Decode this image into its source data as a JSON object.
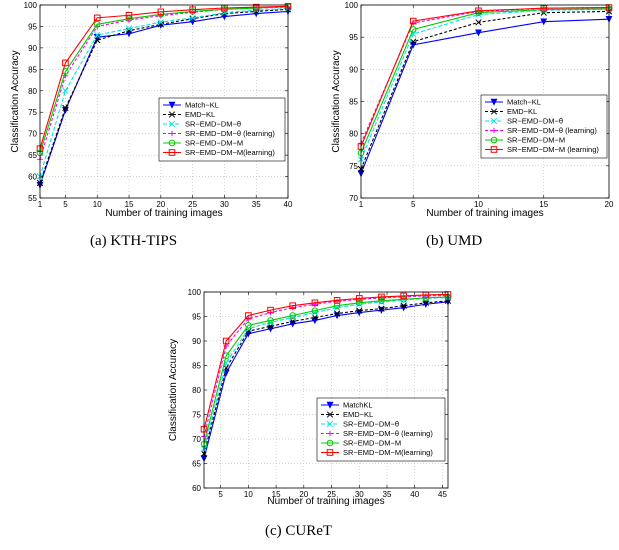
{
  "captions": [
    "(a)  KTH-TIPS",
    "(b)  UMD",
    "(c)  CUReT"
  ],
  "chart_data": [
    {
      "type": "line",
      "xlabel": "Number   of   training   images",
      "ylabel": "Classification   Accuracy",
      "xlim": [
        1,
        40
      ],
      "ylim": [
        55,
        100
      ],
      "xticks": [
        1,
        5,
        10,
        15,
        20,
        25,
        30,
        35,
        40
      ],
      "yticks": [
        55,
        60,
        65,
        70,
        75,
        80,
        85,
        90,
        95,
        100
      ],
      "grid": true,
      "legend_position": "bottom-right",
      "x": [
        1,
        5,
        10,
        15,
        20,
        25,
        30,
        35,
        40
      ],
      "series": [
        {
          "name": "Match−KL",
          "color": "#0000ff",
          "dash": "",
          "marker": "tri-down",
          "values": [
            58.0,
            75.5,
            92.5,
            93.3,
            95.3,
            96.1,
            97.3,
            98.0,
            98.5
          ]
        },
        {
          "name": "EMD−KL",
          "color": "#000000",
          "dash": "3,2",
          "marker": "x",
          "values": [
            58.5,
            76.0,
            91.8,
            94.0,
            95.5,
            96.8,
            98.0,
            98.5,
            99.0
          ]
        },
        {
          "name": "SR−EMD−DM−θ",
          "color": "#00e5e5",
          "dash": "4,2",
          "marker": "x",
          "values": [
            60.0,
            80.0,
            93.0,
            94.5,
            96.0,
            97.0,
            98.2,
            98.8,
            99.2
          ]
        },
        {
          "name": "SR−EMD−DM−θ (learning)",
          "color": "#ff00ff",
          "dash": "3,2",
          "marker": "plus",
          "values": [
            64.0,
            83.5,
            95.0,
            96.5,
            97.5,
            98.3,
            99.0,
            99.3,
            99.5
          ]
        },
        {
          "name": "SR−EMD−DM−M",
          "color": "#00cc00",
          "dash": "",
          "marker": "circle",
          "values": [
            65.5,
            84.5,
            95.5,
            96.8,
            97.8,
            98.5,
            99.0,
            99.3,
            99.6
          ]
        },
        {
          "name": "SR−EMD−DM−M(learning)",
          "color": "#ff0000",
          "dash": "",
          "marker": "square",
          "values": [
            66.5,
            86.5,
            97.0,
            97.6,
            98.4,
            98.9,
            99.3,
            99.5,
            99.7
          ]
        }
      ]
    },
    {
      "type": "line",
      "xlabel": "Number   of   training   images",
      "ylabel": "Classification   Accuracy",
      "xlim": [
        1,
        20
      ],
      "ylim": [
        70,
        100
      ],
      "xticks": [
        1,
        5,
        10,
        15,
        20
      ],
      "yticks": [
        70,
        75,
        80,
        85,
        90,
        95,
        100
      ],
      "grid": true,
      "legend_position": "top-right",
      "x": [
        1,
        5,
        10,
        15,
        20
      ],
      "series": [
        {
          "name": "Match−KL",
          "color": "#0000ff",
          "dash": "",
          "marker": "tri-down",
          "values": [
            73.8,
            93.8,
            95.7,
            97.4,
            97.8
          ]
        },
        {
          "name": "EMD−KL",
          "color": "#000000",
          "dash": "3,2",
          "marker": "x",
          "values": [
            74.5,
            94.3,
            97.3,
            98.8,
            99.0
          ]
        },
        {
          "name": "SR−EMD−DM−θ",
          "color": "#00e5e5",
          "dash": "4,2",
          "marker": "x",
          "values": [
            76.0,
            95.5,
            98.5,
            99.2,
            99.3
          ]
        },
        {
          "name": "SR−EMD−DM−θ (learning)",
          "color": "#ff00ff",
          "dash": "3,2",
          "marker": "plus",
          "values": [
            78.5,
            97.2,
            99.0,
            99.5,
            99.6
          ]
        },
        {
          "name": "SR−EMD−DM−M",
          "color": "#00cc00",
          "dash": "",
          "marker": "circle",
          "values": [
            77.0,
            96.2,
            98.8,
            99.3,
            99.4
          ]
        },
        {
          "name": "SR−EMD−DM−M (learning)",
          "color": "#ff0000",
          "dash": "",
          "marker": "square",
          "values": [
            78.0,
            97.5,
            99.1,
            99.5,
            99.6
          ]
        }
      ]
    },
    {
      "type": "line",
      "xlabel": "Number   of   training   images",
      "ylabel": "Classification   Accuracy",
      "xlim": [
        2,
        46
      ],
      "ylim": [
        60,
        100
      ],
      "xticks": [
        5,
        10,
        15,
        20,
        25,
        30,
        35,
        40,
        45
      ],
      "yticks": [
        60,
        65,
        70,
        75,
        80,
        85,
        90,
        95,
        100
      ],
      "grid": true,
      "legend_position": "bottom-right",
      "x": [
        2,
        6,
        10,
        14,
        18,
        22,
        26,
        30,
        34,
        38,
        42,
        46
      ],
      "series": [
        {
          "name": "MatchKL",
          "color": "#0000ff",
          "dash": "",
          "marker": "tri-down",
          "values": [
            66.0,
            83.5,
            91.5,
            92.5,
            93.5,
            94.2,
            95.2,
            95.8,
            96.3,
            96.8,
            97.5,
            98.0
          ]
        },
        {
          "name": "EMD−KL",
          "color": "#000000",
          "dash": "3,2",
          "marker": "x",
          "values": [
            67.0,
            84.5,
            92.0,
            93.0,
            94.0,
            94.8,
            95.6,
            96.2,
            96.6,
            97.2,
            97.8,
            98.2
          ]
        },
        {
          "name": "SR−EMD−DM−θ",
          "color": "#00e5e5",
          "dash": "4,2",
          "marker": "x",
          "values": [
            68.0,
            85.5,
            92.5,
            93.8,
            94.8,
            95.8,
            96.8,
            97.5,
            98.0,
            98.4,
            98.7,
            98.9
          ]
        },
        {
          "name": "SR−EMD−DM−θ (learning)",
          "color": "#ff00ff",
          "dash": "3,2",
          "marker": "plus",
          "values": [
            70.5,
            89.0,
            94.5,
            95.8,
            96.8,
            97.5,
            98.1,
            98.5,
            98.8,
            99.0,
            99.2,
            99.3
          ]
        },
        {
          "name": "SR−EMD−DM−M",
          "color": "#00cc00",
          "dash": "",
          "marker": "circle",
          "values": [
            69.0,
            87.0,
            93.2,
            94.2,
            95.2,
            96.2,
            97.2,
            97.8,
            98.2,
            98.5,
            98.8,
            99.0
          ]
        },
        {
          "name": "SR−EMD−DM−M(learning)",
          "color": "#ff0000",
          "dash": "",
          "marker": "square",
          "values": [
            72.0,
            90.0,
            95.2,
            96.3,
            97.2,
            97.8,
            98.3,
            98.7,
            99.0,
            99.2,
            99.4,
            99.5
          ]
        }
      ]
    }
  ]
}
